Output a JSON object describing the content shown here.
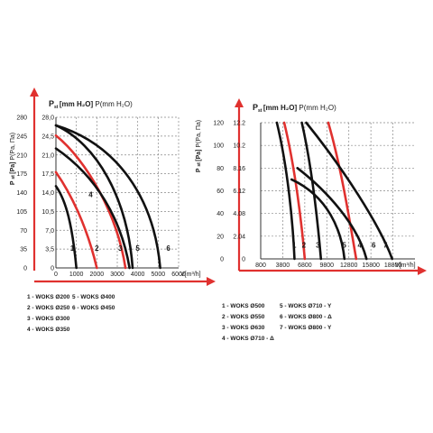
{
  "colors": {
    "arrow": "#e0312f",
    "grid": "#888888",
    "black_curve": "#111111",
    "red_curve": "#e0312f",
    "text": "#1a1a1a"
  },
  "chart_data": [
    {
      "type": "line",
      "y_axis_title_main": "P",
      "y_axis_title_sub": "st",
      "y_axis_title_rest": "[Pa]",
      "y_axis_title_extra": "P(Pa, Па)",
      "y2_axis_title_main": "P",
      "y2_axis_title_sub": "st",
      "y2_axis_title_rest": "[mm H₂O]",
      "y2_axis_title_extra": "P(mm H₂O)",
      "x_axis_title": "V[m³/h]",
      "xlim": [
        0,
        6000
      ],
      "ylim": [
        0,
        280
      ],
      "y2lim": [
        0,
        28
      ],
      "x_ticks": [
        0,
        1000,
        2000,
        3000,
        4000,
        5000,
        6000
      ],
      "y_ticks": [
        0,
        35,
        70,
        105,
        140,
        175,
        210,
        245,
        280
      ],
      "y2_ticks": [
        "0",
        "3,5",
        "7,0",
        "10,5",
        "14,0",
        "17,5",
        "21,0",
        "24,5",
        "28,0"
      ],
      "grid": true,
      "series": [
        {
          "name": "1",
          "color": "black",
          "x": [
            0,
            500,
            800,
            1000
          ],
          "y": [
            152,
            125,
            80,
            0
          ],
          "label_at": [
            700,
            32
          ]
        },
        {
          "name": "2",
          "color": "red",
          "x": [
            0,
            700,
            1500,
            2000
          ],
          "y": [
            178,
            140,
            80,
            0
          ],
          "label_at": [
            1900,
            32
          ]
        },
        {
          "name": "3",
          "color": "red",
          "x": [
            0,
            1500,
            3000,
            3400
          ],
          "y": [
            246,
            200,
            100,
            0
          ],
          "label_at": [
            3050,
            32
          ]
        },
        {
          "name": "4",
          "color": "black",
          "x": [
            0,
            2000,
            3200,
            3600
          ],
          "y": [
            222,
            170,
            90,
            0
          ],
          "label_at": [
            1600,
            132
          ]
        },
        {
          "name": "5",
          "color": "black",
          "x": [
            0,
            2000,
            3500,
            3750
          ],
          "y": [
            265,
            230,
            130,
            0
          ],
          "label_at": [
            3900,
            32
          ]
        },
        {
          "name": "6",
          "color": "black",
          "x": [
            0,
            3000,
            4800,
            5100
          ],
          "y": [
            265,
            230,
            130,
            0
          ],
          "label_at": [
            5400,
            32
          ]
        }
      ],
      "legend": [
        [
          "1 - WOKS Ø200",
          "2 - WOKS Ø250",
          "3 - WOKS Ø300",
          "4 - WOKS Ø350"
        ],
        [
          "5 - WOKS Ø400",
          "6 - WOKS Ø450"
        ]
      ]
    },
    {
      "type": "line",
      "y_axis_title_main": "P",
      "y_axis_title_sub": "st",
      "y_axis_title_rest": "[Pa]",
      "y_axis_title_extra": "P(Pa, Па)",
      "y2_axis_title_main": "P",
      "y2_axis_title_sub": "st",
      "y2_axis_title_rest": "[mm H₂O]",
      "y2_axis_title_extra": "P(mm H₂O)",
      "x_axis_title": "V[m³/h]",
      "xlim": [
        800,
        21800
      ],
      "ylim": [
        0,
        120
      ],
      "y2lim": [
        0,
        12.24
      ],
      "x_ticks": [
        800,
        3800,
        6800,
        9800,
        12800,
        15800,
        18800
      ],
      "y_ticks": [
        0,
        20,
        40,
        60,
        80,
        100,
        120
      ],
      "y2_ticks": [
        "0",
        "2.04",
        "4.08",
        "6.12",
        "8.16",
        "10.2",
        "12.2"
      ],
      "grid": true,
      "series": [
        {
          "name": "1",
          "color": "black",
          "x": [
            3000,
            4500,
            5200,
            5400
          ],
          "y": [
            120,
            80,
            30,
            0
          ],
          "label_at": [
            5100,
            10
          ]
        },
        {
          "name": "2",
          "color": "red",
          "x": [
            4000,
            5500,
            6400,
            6800
          ],
          "y": [
            120,
            80,
            30,
            0
          ],
          "label_at": [
            6400,
            10
          ]
        },
        {
          "name": "3",
          "color": "black",
          "x": [
            6400,
            7800,
            8600,
            9000
          ],
          "y": [
            120,
            80,
            30,
            0
          ],
          "label_at": [
            8300,
            10
          ]
        },
        {
          "name": "4",
          "color": "red",
          "x": [
            10000,
            11800,
            13000,
            13800
          ],
          "y": [
            120,
            80,
            30,
            0
          ],
          "label_at": [
            14000,
            10
          ]
        },
        {
          "name": "5",
          "color": "black",
          "x": [
            5000,
            10000,
            11800,
            12200
          ],
          "y": [
            70,
            55,
            25,
            0
          ],
          "label_at": [
            11900,
            10
          ]
        },
        {
          "name": "6",
          "color": "black",
          "x": [
            5800,
            9800,
            14000,
            15200
          ],
          "y": [
            80,
            60,
            30,
            0
          ],
          "label_at": [
            15900,
            10
          ]
        },
        {
          "name": "7",
          "color": "black",
          "x": [
            7000,
            12000,
            17000,
            18700
          ],
          "y": [
            120,
            80,
            30,
            0
          ],
          "label_at": [
            17500,
            10
          ]
        }
      ],
      "legend": [
        [
          "1 - WOKS Ø500",
          "2 - WOKS Ø550",
          "3 - WOKS Ø630",
          "4 - WOKS Ø710 - Δ"
        ],
        [
          "5 - WOKS Ø710 - Y",
          "6 - WOKS Ø800 - Δ",
          "7 - WOKS Ø800 - Y"
        ]
      ]
    }
  ]
}
